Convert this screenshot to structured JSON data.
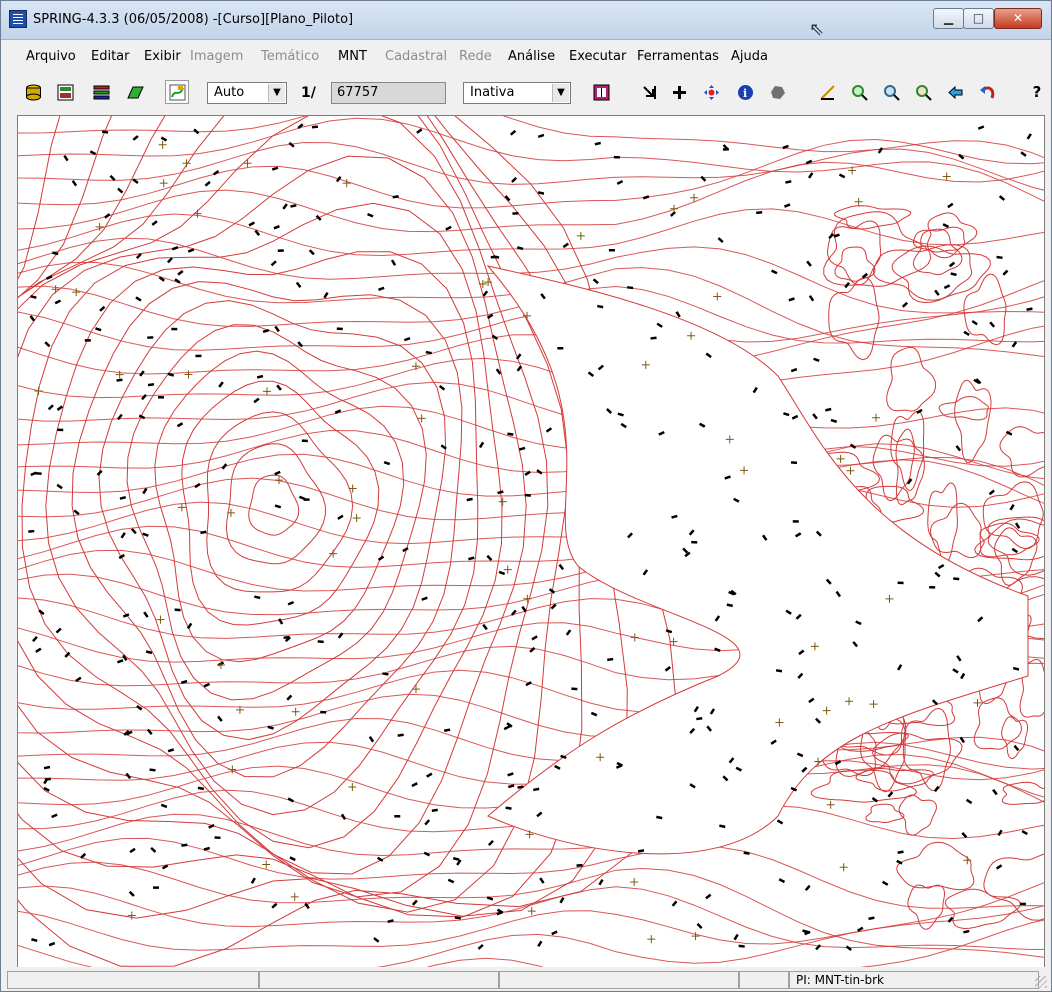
{
  "window": {
    "title": "SPRING-4.3.3 (06/05/2008) -[Curso][Plano_Piloto]",
    "controls": {
      "minimize": "▁",
      "maximize": "□",
      "close": "✕"
    }
  },
  "menu": {
    "items": [
      {
        "label": "Arquivo",
        "enabled": true
      },
      {
        "label": "Editar",
        "enabled": true
      },
      {
        "label": "Exibir",
        "enabled": true
      },
      {
        "label": "Imagem",
        "enabled": false
      },
      {
        "label": "Temático",
        "enabled": false
      },
      {
        "label": "MNT",
        "enabled": true
      },
      {
        "label": "Cadastral",
        "enabled": false
      },
      {
        "label": "Rede",
        "enabled": false
      },
      {
        "label": "Análise",
        "enabled": true
      },
      {
        "label": "Executar",
        "enabled": true
      },
      {
        "label": "Ferramentas",
        "enabled": true
      },
      {
        "label": "Ajuda",
        "enabled": true
      }
    ]
  },
  "toolbar": {
    "zoom_mode": "Auto",
    "scale_prefix": "1/",
    "scale_value": "67757",
    "cursor_mode": "Inativa",
    "help_label": "?",
    "colors": {
      "contour": "#d33a3a",
      "label": "#000000",
      "point": "#7a5a10"
    }
  },
  "statusbar": {
    "panels": [
      "",
      "",
      "",
      "",
      "PI: MNT-tin-brk"
    ]
  }
}
